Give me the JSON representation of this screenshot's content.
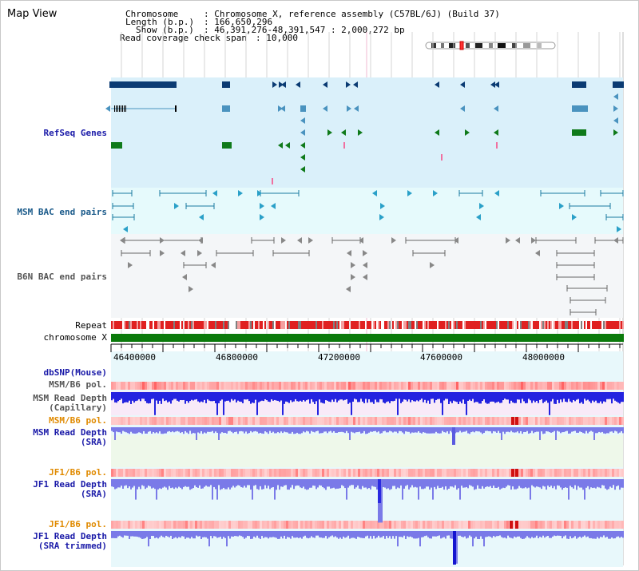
{
  "window": {
    "title": "Map View"
  },
  "info": {
    "chromosome_key": "Chromosome",
    "chromosome_val": ": Chromosome X, reference assembly (C57BL/6J) (Build 37)",
    "length_key": "Length (b.p.)",
    "length_val": ": 166,650,296",
    "show_key": "Show (b.p.)",
    "show_val": ": 46,391,276-48,391,547 : 2,000,272 bp",
    "coverage_key": "Read coverage check span",
    "coverage_val": ": 10,000"
  },
  "tracks": {
    "refseq": "RefSeq Genes",
    "msm_bac": "MSM BAC end pairs",
    "b6n_bac": "B6N BAC end pairs",
    "repeat": "Repeat",
    "chromosome": "chromosome X",
    "dbsnp": "dbSNP(Mouse)",
    "msm_pol1": "MSM/B6 pol.",
    "msm_depth_cap_1": "MSM Read Depth",
    "msm_depth_cap_2": "(Capillary)",
    "msm_pol2": "MSM/B6 pol.",
    "msm_depth_sra_1": "MSM Read Depth",
    "msm_depth_sra_2": "(SRA)",
    "jf1_pol1": "JF1/B6 pol.",
    "jf1_depth_sra_1": "JF1 Read Depth",
    "jf1_depth_sra_2": "(SRA)",
    "jf1_pol2": "JF1/B6 pol.",
    "jf1_depth_trim_1": "JF1 Read Depth",
    "jf1_depth_trim_2": "(SRA trimmed)"
  },
  "axis": {
    "ticks": [
      "46400000",
      "46800000",
      "47200000",
      "47600000",
      "48000000"
    ]
  },
  "colors": {
    "refseq_bg": "#daf0fa",
    "msm_bac_bg": "#e6fafc",
    "b6n_bac_bg": "#f4f6f8",
    "gene_dark": "#0b3b73",
    "gene_mid": "#4a93bf",
    "gene_green": "#0f7a1a",
    "chromosome_bar": "#0b7a0b",
    "repeat_red": "#e02020",
    "pol_red": "#ee6a6a",
    "depth_cap": "#2323e0",
    "depth_sra": "#7a7ae8",
    "label_blue": "#1a1aa8",
    "label_orange": "#e08a00",
    "label_gray": "#555555"
  }
}
